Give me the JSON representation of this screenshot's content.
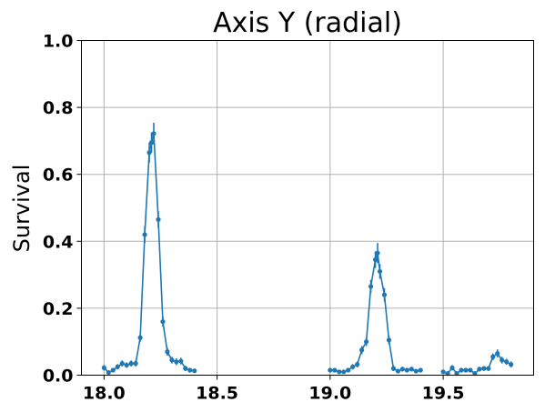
{
  "chart_data": {
    "type": "line",
    "title": "Axis Y (radial)",
    "xlabel": "",
    "ylabel": "Survival",
    "xlim": [
      17.9,
      19.9
    ],
    "ylim": [
      0,
      1.0
    ],
    "xticks": [
      18.0,
      18.5,
      19.0,
      19.5
    ],
    "xtick_labels": [
      "18.0",
      "18.5",
      "19.0",
      "19.5"
    ],
    "yticks": [
      0.0,
      0.2,
      0.4,
      0.6,
      0.8,
      1.0
    ],
    "ytick_labels": [
      "0.0",
      "0.2",
      "0.4",
      "0.6",
      "0.8",
      "1.0"
    ],
    "grid": true,
    "color": "#1f77b4",
    "series": [
      {
        "points": [
          {
            "x": 18.0,
            "y": 0.022,
            "err": 0.008
          },
          {
            "x": 18.02,
            "y": 0.008,
            "err": 0.005
          },
          {
            "x": 18.04,
            "y": 0.015,
            "err": 0.006
          },
          {
            "x": 18.06,
            "y": 0.025,
            "err": 0.008
          },
          {
            "x": 18.08,
            "y": 0.035,
            "err": 0.009
          },
          {
            "x": 18.1,
            "y": 0.03,
            "err": 0.008
          },
          {
            "x": 18.12,
            "y": 0.035,
            "err": 0.009
          },
          {
            "x": 18.14,
            "y": 0.035,
            "err": 0.009
          },
          {
            "x": 18.16,
            "y": 0.112,
            "err": 0.012
          },
          {
            "x": 18.18,
            "y": 0.42,
            "err": 0.025
          },
          {
            "x": 18.2,
            "y": 0.665,
            "err": 0.03
          },
          {
            "x": 18.21,
            "y": 0.695,
            "err": 0.03
          },
          {
            "x": 18.22,
            "y": 0.722,
            "err": 0.032
          },
          {
            "x": 18.24,
            "y": 0.465,
            "err": 0.025
          },
          {
            "x": 18.26,
            "y": 0.16,
            "err": 0.015
          },
          {
            "x": 18.28,
            "y": 0.07,
            "err": 0.012
          },
          {
            "x": 18.3,
            "y": 0.045,
            "err": 0.01
          },
          {
            "x": 18.32,
            "y": 0.04,
            "err": 0.01
          },
          {
            "x": 18.34,
            "y": 0.042,
            "err": 0.01
          },
          {
            "x": 18.36,
            "y": 0.02,
            "err": 0.008
          },
          {
            "x": 18.38,
            "y": 0.015,
            "err": 0.006
          },
          {
            "x": 18.4,
            "y": 0.013,
            "err": 0.006
          }
        ]
      },
      {
        "points": [
          {
            "x": 19.0,
            "y": 0.015,
            "err": 0.006
          },
          {
            "x": 19.02,
            "y": 0.015,
            "err": 0.006
          },
          {
            "x": 19.04,
            "y": 0.01,
            "err": 0.005
          },
          {
            "x": 19.06,
            "y": 0.01,
            "err": 0.005
          },
          {
            "x": 19.08,
            "y": 0.015,
            "err": 0.006
          },
          {
            "x": 19.1,
            "y": 0.025,
            "err": 0.008
          },
          {
            "x": 19.12,
            "y": 0.032,
            "err": 0.009
          },
          {
            "x": 19.14,
            "y": 0.075,
            "err": 0.012
          },
          {
            "x": 19.16,
            "y": 0.1,
            "err": 0.013
          },
          {
            "x": 19.18,
            "y": 0.265,
            "err": 0.02
          },
          {
            "x": 19.2,
            "y": 0.345,
            "err": 0.025
          },
          {
            "x": 19.21,
            "y": 0.365,
            "err": 0.03
          },
          {
            "x": 19.22,
            "y": 0.31,
            "err": 0.022
          },
          {
            "x": 19.24,
            "y": 0.24,
            "err": 0.02
          },
          {
            "x": 19.26,
            "y": 0.105,
            "err": 0.013
          },
          {
            "x": 19.28,
            "y": 0.02,
            "err": 0.008
          },
          {
            "x": 19.3,
            "y": 0.012,
            "err": 0.006
          },
          {
            "x": 19.32,
            "y": 0.018,
            "err": 0.007
          },
          {
            "x": 19.34,
            "y": 0.015,
            "err": 0.006
          },
          {
            "x": 19.36,
            "y": 0.018,
            "err": 0.007
          },
          {
            "x": 19.38,
            "y": 0.012,
            "err": 0.006
          },
          {
            "x": 19.4,
            "y": 0.015,
            "err": 0.006
          }
        ]
      },
      {
        "points": [
          {
            "x": 19.5,
            "y": 0.01,
            "err": 0.006
          },
          {
            "x": 19.52,
            "y": 0.005,
            "err": 0.005
          },
          {
            "x": 19.54,
            "y": 0.022,
            "err": 0.008
          },
          {
            "x": 19.56,
            "y": 0.005,
            "err": 0.005
          },
          {
            "x": 19.58,
            "y": 0.015,
            "err": 0.006
          },
          {
            "x": 19.6,
            "y": 0.015,
            "err": 0.006
          },
          {
            "x": 19.62,
            "y": 0.015,
            "err": 0.006
          },
          {
            "x": 19.64,
            "y": 0.005,
            "err": 0.005
          },
          {
            "x": 19.66,
            "y": 0.018,
            "err": 0.007
          },
          {
            "x": 19.68,
            "y": 0.02,
            "err": 0.007
          },
          {
            "x": 19.7,
            "y": 0.02,
            "err": 0.007
          },
          {
            "x": 19.72,
            "y": 0.055,
            "err": 0.01
          },
          {
            "x": 19.74,
            "y": 0.065,
            "err": 0.012
          },
          {
            "x": 19.76,
            "y": 0.045,
            "err": 0.01
          },
          {
            "x": 19.78,
            "y": 0.04,
            "err": 0.009
          },
          {
            "x": 19.8,
            "y": 0.032,
            "err": 0.009
          }
        ]
      }
    ]
  }
}
